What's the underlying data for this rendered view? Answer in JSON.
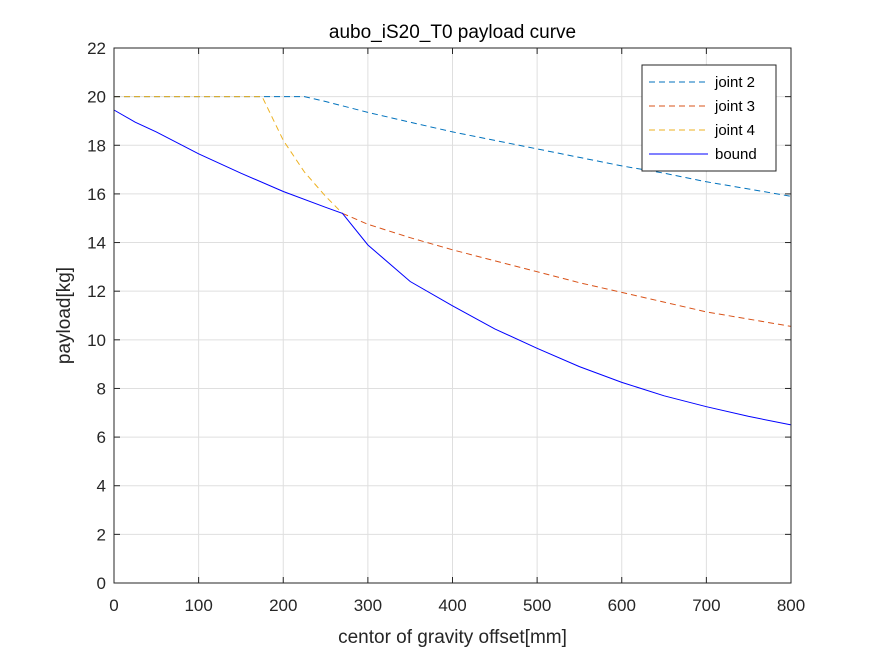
{
  "chart_data": {
    "type": "line",
    "title": "aubo_iS20_T0 payload curve",
    "xlabel": "centor of gravity offset[mm]",
    "ylabel": "payload[kg]",
    "xlim": [
      0,
      800
    ],
    "ylim": [
      0,
      22
    ],
    "xticks": [
      0,
      100,
      200,
      300,
      400,
      500,
      600,
      700,
      800
    ],
    "yticks": [
      0,
      2,
      4,
      6,
      8,
      10,
      12,
      14,
      16,
      18,
      20,
      22
    ],
    "grid": true,
    "legend_position": "top-right",
    "series": [
      {
        "name": "joint 2",
        "color": "#0072BD",
        "style": "dashed",
        "x": [
          0,
          100,
          200,
          225,
          250,
          300,
          350,
          400,
          450,
          500,
          550,
          600,
          650,
          700,
          750,
          800
        ],
        "y": [
          20,
          20,
          20,
          20,
          19.8,
          19.35,
          18.95,
          18.55,
          18.2,
          17.85,
          17.5,
          17.15,
          16.85,
          16.5,
          16.2,
          15.9
        ]
      },
      {
        "name": "joint 3",
        "color": "#D95319",
        "style": "dashed",
        "x": [
          270,
          300,
          350,
          400,
          450,
          500,
          550,
          600,
          650,
          700,
          750,
          800
        ],
        "y": [
          15.2,
          14.75,
          14.2,
          13.7,
          13.25,
          12.8,
          12.35,
          11.95,
          11.55,
          11.15,
          10.85,
          10.55
        ]
      },
      {
        "name": "joint 4",
        "color": "#EDB120",
        "style": "dashed",
        "x": [
          0,
          100,
          175,
          200,
          225,
          250,
          270
        ],
        "y": [
          20,
          20,
          20,
          18.2,
          16.9,
          15.9,
          15.2
        ]
      },
      {
        "name": "bound",
        "color": "#0000FF",
        "style": "solid",
        "x": [
          0,
          25,
          50,
          100,
          150,
          200,
          250,
          270,
          300,
          350,
          400,
          450,
          500,
          550,
          600,
          650,
          700,
          750,
          800
        ],
        "y": [
          19.45,
          18.95,
          18.55,
          17.65,
          16.85,
          16.1,
          15.45,
          15.2,
          13.9,
          12.4,
          11.4,
          10.45,
          9.65,
          8.9,
          8.25,
          7.7,
          7.25,
          6.85,
          6.5
        ]
      }
    ]
  }
}
